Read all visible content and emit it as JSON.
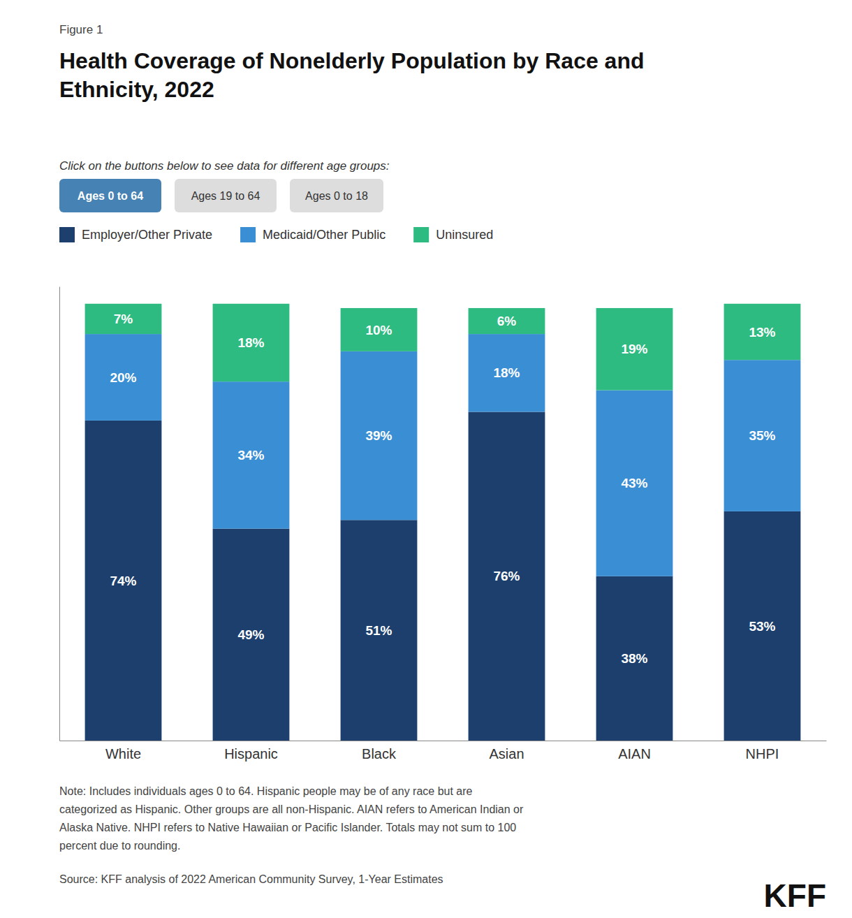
{
  "chart_data": {
    "type": "bar",
    "stacked": true,
    "data_labels": true,
    "title": "Health Coverage of Nonelderly Population by Race and\nEthnicity, 2022",
    "subtitle": "Click on the buttons below to see data for different age groups:",
    "annotations": [
      "Figure 1",
      "Ages 0 to 64",
      "Ages 19 to 64",
      "Ages 0 to 18",
      "Note: Includes individuals ages 0 to 64. Hispanic people may be of any race but are\ncategorized as Hispanic. Other groups are all non-Hispanic. AIAN refers to American Indian or\nAlaska Native. NHPI refers to Native Hawaiian or Pacific Islander. Totals may not sum to 100\npercent due to rounding.",
      "Source: KFF analysis of 2022 American Community Survey, 1-Year Estimates",
      "KFF"
    ],
    "categories": [
      "White",
      "Hispanic",
      "Black",
      "Asian",
      "AIAN",
      "NHPI"
    ],
    "series": [
      {
        "name": "Employer/Other Private",
        "color": "#1C3F6E",
        "values": [
          74,
          49,
          51,
          76,
          38,
          53
        ],
        "value_labels": [
          "74%",
          "49%",
          "51%",
          "76%",
          "38%",
          "53%"
        ]
      },
      {
        "name": "Medicaid/Other Public",
        "color": "#3A8ED4",
        "values": [
          20,
          34,
          39,
          18,
          43,
          35
        ],
        "value_labels": [
          "20%",
          "34%",
          "39%",
          "18%",
          "43%",
          "35%"
        ]
      },
      {
        "name": "Uninsured",
        "color": "#2EBB82",
        "values": [
          7,
          18,
          10,
          6,
          19,
          13
        ],
        "value_labels": [
          "7%",
          "18%",
          "10%",
          "6%",
          "19%",
          "13%"
        ]
      }
    ],
    "ylim": [
      0,
      105
    ],
    "tick_labels": "x",
    "legend": "top-left"
  }
}
